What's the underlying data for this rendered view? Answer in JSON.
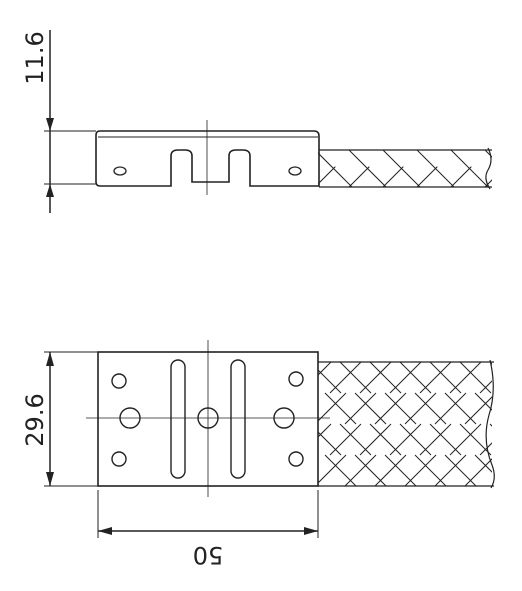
{
  "dimensions": {
    "height_side": "11.6",
    "width_plan": "29.6",
    "length_plan": "50"
  },
  "colors": {
    "line": "#222222",
    "background": "#ffffff"
  }
}
